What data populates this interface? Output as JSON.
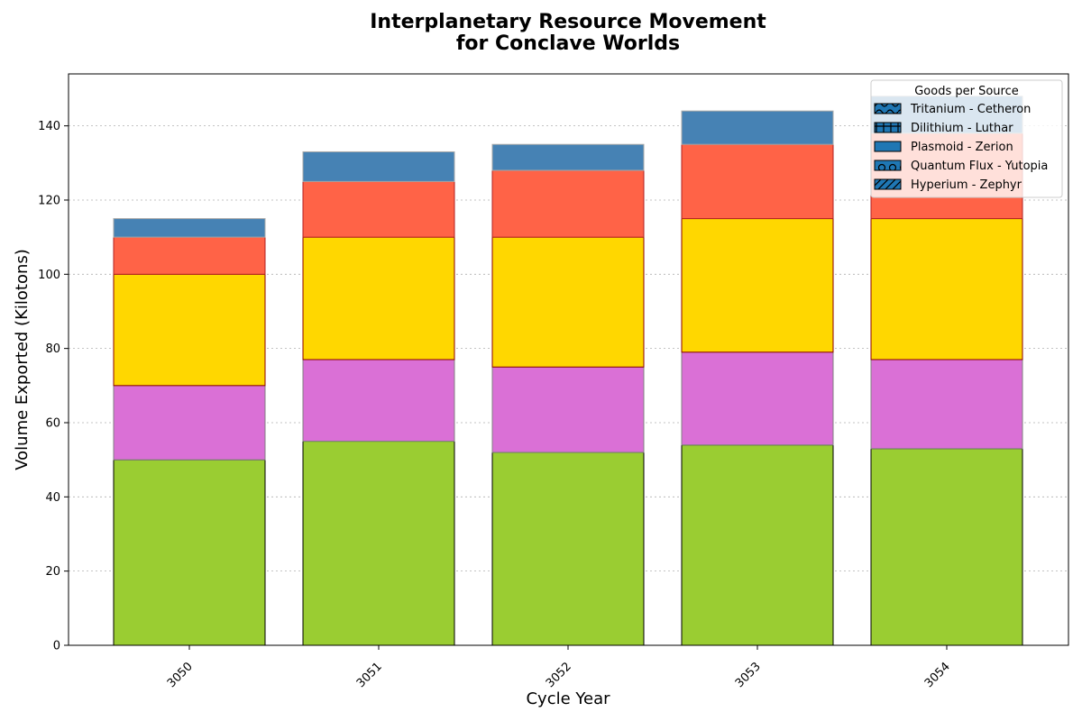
{
  "chart_data": {
    "type": "bar",
    "stacked": true,
    "title_lines": [
      "Interplanetary Resource Movement",
      "for Conclave Worlds"
    ],
    "xlabel": "Cycle Year",
    "ylabel": "Volume Exported (Kilotons)",
    "categories": [
      "3050",
      "3051",
      "3052",
      "3053",
      "3054"
    ],
    "ylim": [
      0,
      154
    ],
    "yticks": [
      0,
      20,
      40,
      60,
      80,
      100,
      120,
      140
    ],
    "grid": "horizontal dotted",
    "legend": {
      "title": "Goods per Source",
      "placement": "top-right",
      "entries": [
        "Tritanium - Cetheron",
        "Dilithium - Luthar",
        "Plasmoid - Zerion",
        "Quantum Flux - Yutopia",
        "Hyperium - Zephyr"
      ],
      "swatch_color": "#1f77b4",
      "hatches": [
        "wave",
        "grid",
        "none",
        "circles",
        "diagonal"
      ]
    },
    "series": [
      {
        "name": "Hyperium - Zephyr",
        "values": [
          50,
          55,
          52,
          54,
          53
        ],
        "color": "#9ACD32",
        "edge": "#000000"
      },
      {
        "name": "Quantum Flux - Yutopia",
        "values": [
          20,
          22,
          23,
          25,
          24
        ],
        "color": "#DA70D6",
        "edge": "#808080"
      },
      {
        "name": "Plasmoid - Zerion",
        "values": [
          30,
          33,
          35,
          36,
          38
        ],
        "color": "#FFD700",
        "edge": "#8B0000"
      },
      {
        "name": "Dilithium - Luthar",
        "values": [
          10,
          15,
          18,
          20,
          23
        ],
        "color": "#FF6347",
        "edge": "#B22222"
      },
      {
        "name": "Tritanium - Cetheron",
        "values": [
          5,
          8,
          7,
          9,
          10
        ],
        "color": "#4682B4",
        "edge": "#A9A9A9"
      }
    ]
  }
}
